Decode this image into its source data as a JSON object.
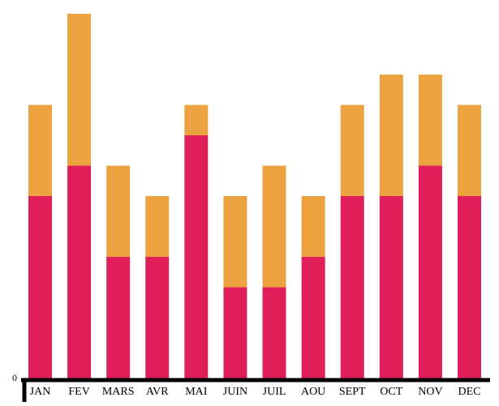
{
  "chart_data": {
    "type": "bar",
    "stacked": true,
    "categories": [
      "JAN",
      "FEV",
      "MARS",
      "AVR",
      "MAI",
      "JUIN",
      "JUIL",
      "AOU",
      "SEPT",
      "OCT",
      "NOV",
      "DEC"
    ],
    "series": [
      {
        "values": [
          6,
          7,
          4,
          4,
          8,
          3,
          3,
          4,
          6,
          6,
          7,
          6
        ],
        "color": "#e01e5a"
      },
      {
        "values": [
          3,
          5,
          3,
          2,
          1,
          3,
          4,
          2,
          3,
          4,
          3,
          3
        ],
        "color": "#eca23f"
      }
    ],
    "ylim": [
      0,
      12
    ],
    "y_tick_label": "0",
    "grid": false,
    "legend": "none"
  }
}
